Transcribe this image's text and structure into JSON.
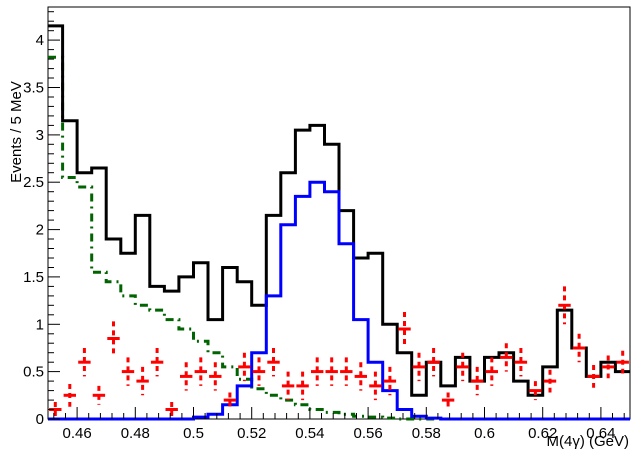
{
  "chart_data": {
    "type": "line",
    "title": "",
    "xlabel": "M(4γ)   (GeV)",
    "ylabel": "Events / 5 MeV",
    "xlim": [
      0.45,
      0.65
    ],
    "ylim": [
      0,
      4.35
    ],
    "x_ticks": [
      0.46,
      0.48,
      0.5,
      0.52,
      0.54,
      0.56,
      0.58,
      0.6,
      0.62,
      0.64
    ],
    "x_tick_labels": [
      "0.46",
      "0.48",
      "0.5",
      "0.52",
      "0.54",
      "0.56",
      "0.58",
      "0.6",
      "0.62",
      "0.64"
    ],
    "y_ticks": [
      0,
      0.5,
      1,
      1.5,
      2,
      2.5,
      3,
      3.5,
      4
    ],
    "y_tick_labels": [
      "0",
      "0.5",
      "1",
      "1.5",
      "2",
      "2.5",
      "3",
      "3.5",
      "4"
    ],
    "bin_width": 0.005,
    "series": [
      {
        "style": "histogram-solid",
        "color": "#000000",
        "x_start": 0.45,
        "values": [
          4.15,
          3.15,
          2.6,
          2.65,
          1.9,
          1.75,
          2.15,
          1.4,
          1.35,
          1.5,
          1.65,
          1.05,
          1.6,
          1.45,
          1.2,
          2.15,
          2.6,
          3.05,
          3.1,
          2.9,
          2.2,
          1.7,
          1.75,
          1.0,
          0.7,
          0.25,
          0.6,
          0.35,
          0.65,
          0.4,
          0.65,
          0.7,
          0.4,
          0.25,
          0.55,
          1.15,
          0.75,
          0.45,
          0.6,
          0.5
        ]
      },
      {
        "style": "histogram-solid",
        "color": "#0000ff",
        "x_start": 0.45,
        "values": [
          0,
          0,
          0,
          0,
          0,
          0,
          0,
          0,
          0,
          0,
          0.02,
          0.05,
          0.15,
          0.35,
          0.7,
          1.3,
          2.05,
          2.35,
          2.5,
          2.4,
          1.85,
          1.05,
          0.6,
          0.3,
          0.1,
          0.03,
          0.01,
          0,
          0,
          0,
          0,
          0,
          0,
          0,
          0,
          0,
          0,
          0,
          0,
          0
        ]
      },
      {
        "style": "histogram-dashdot",
        "color": "#006400",
        "x_start": 0.45,
        "values": [
          3.82,
          2.55,
          2.45,
          1.55,
          1.45,
          1.3,
          1.2,
          1.15,
          1.05,
          0.95,
          0.82,
          0.7,
          0.55,
          0.42,
          0.32,
          0.25,
          0.2,
          0.15,
          0.1,
          0.07,
          0.05,
          0.03,
          0.02,
          0.01,
          0,
          0,
          0,
          0,
          0,
          0,
          0,
          0,
          0,
          0,
          0,
          0,
          0,
          0,
          0,
          0
        ]
      },
      {
        "style": "points-errorbars",
        "color": "#ff0000",
        "x": [
          0.4525,
          0.4575,
          0.4625,
          0.4675,
          0.4725,
          0.4775,
          0.4825,
          0.4875,
          0.4925,
          0.4975,
          0.5025,
          0.5075,
          0.5125,
          0.5175,
          0.5225,
          0.5275,
          0.5325,
          0.5375,
          0.5425,
          0.5475,
          0.5525,
          0.5575,
          0.5625,
          0.5675,
          0.5725,
          0.5775,
          0.5825,
          0.5875,
          0.5925,
          0.5975,
          0.6025,
          0.6075,
          0.6125,
          0.6175,
          0.6225,
          0.6275,
          0.6325,
          0.6375,
          0.6425,
          0.6475
        ],
        "y": [
          0.1,
          0.25,
          0.6,
          0.25,
          0.85,
          0.5,
          0.4,
          0.6,
          0.1,
          0.45,
          0.5,
          0.45,
          0.2,
          0.55,
          0.5,
          0.6,
          0.35,
          0.35,
          0.5,
          0.5,
          0.5,
          0.45,
          0.35,
          0.4,
          0.95,
          0.55,
          0.6,
          0.2,
          0.55,
          0.4,
          0.5,
          0.65,
          0.6,
          0.3,
          0.4,
          1.2,
          0.75,
          0.45,
          0.55,
          0.6
        ],
        "yerr": [
          0.08,
          0.12,
          0.15,
          0.1,
          0.18,
          0.15,
          0.15,
          0.15,
          0.08,
          0.15,
          0.15,
          0.15,
          0.08,
          0.15,
          0.15,
          0.15,
          0.15,
          0.15,
          0.15,
          0.15,
          0.15,
          0.15,
          0.15,
          0.15,
          0.18,
          0.15,
          0.15,
          0.08,
          0.15,
          0.15,
          0.15,
          0.15,
          0.15,
          0.1,
          0.12,
          0.2,
          0.15,
          0.12,
          0.12,
          0.12
        ]
      }
    ]
  }
}
